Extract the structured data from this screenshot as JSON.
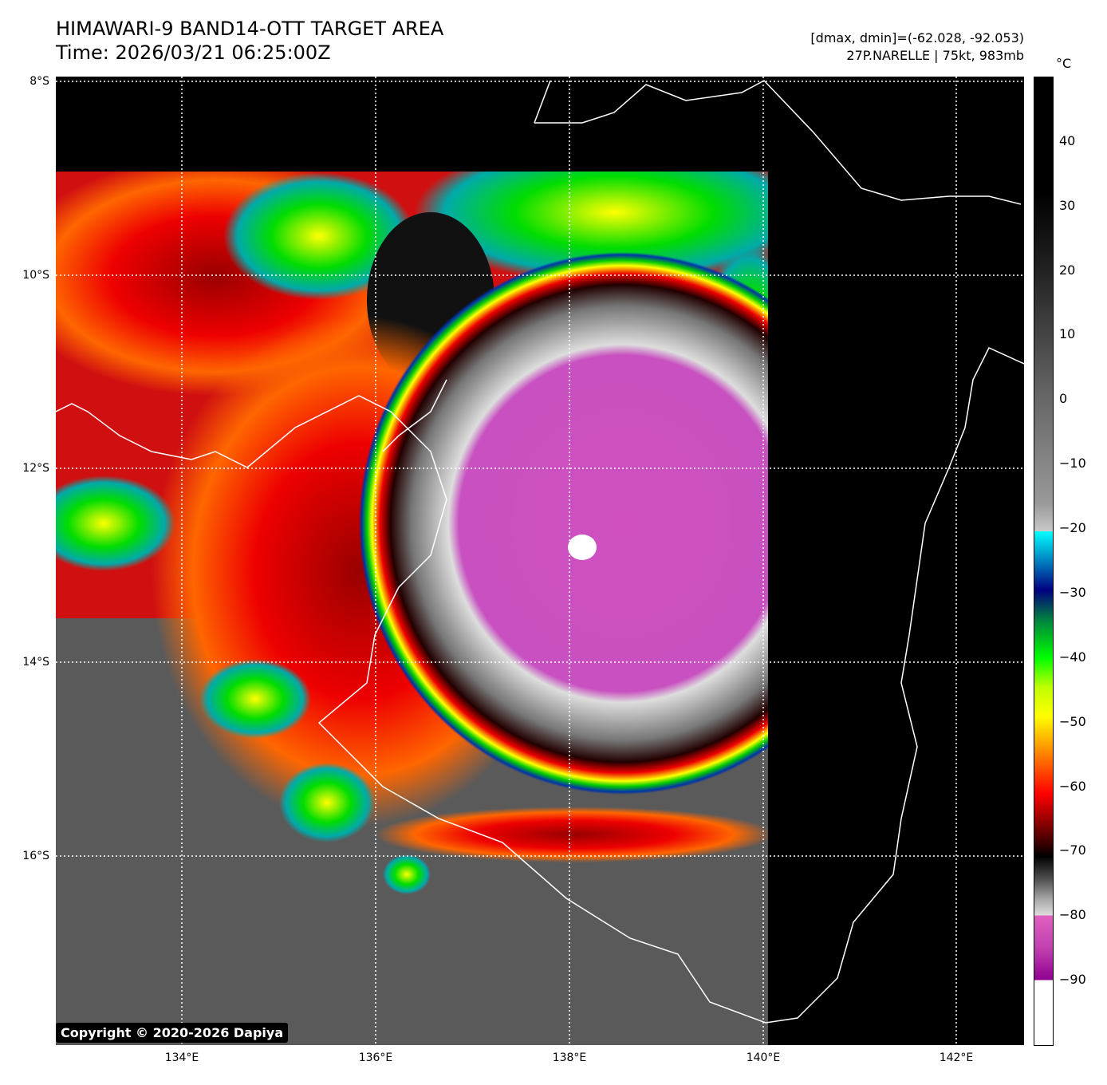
{
  "header": {
    "title": "HIMAWARI-9 BAND14-OTT TARGET AREA",
    "time": "Time: 2026/03/21 06:25:00Z",
    "range": "[dmax, dmin]=(-62.028, -92.053)",
    "storm": "27P.NARELLE | 75kt, 983mb"
  },
  "map": {
    "lat_labels": [
      "8°S",
      "10°S",
      "12°S",
      "14°S",
      "16°S"
    ],
    "lon_labels": [
      "134°E",
      "136°E",
      "138°E",
      "140°E",
      "142°E"
    ],
    "lat_values": [
      -8,
      -10,
      -12,
      -14,
      -16
    ],
    "lon_values": [
      134,
      136,
      138,
      140,
      142
    ],
    "lon_range": [
      132.7,
      142.7
    ],
    "lat_range": [
      -7.95,
      -17.95
    ]
  },
  "colorbar": {
    "unit": "°C",
    "ticks": [
      "40",
      "30",
      "20",
      "10",
      "0",
      "−10",
      "−20",
      "−30",
      "−40",
      "−50",
      "−60",
      "−70",
      "−80",
      "−90"
    ],
    "tick_values": [
      40,
      30,
      20,
      10,
      0,
      -10,
      -20,
      -30,
      -40,
      -50,
      -60,
      -70,
      -80,
      -90
    ],
    "range": [
      -100,
      50
    ]
  },
  "copyright": "Copyright © 2020-2026 Dapiya"
}
